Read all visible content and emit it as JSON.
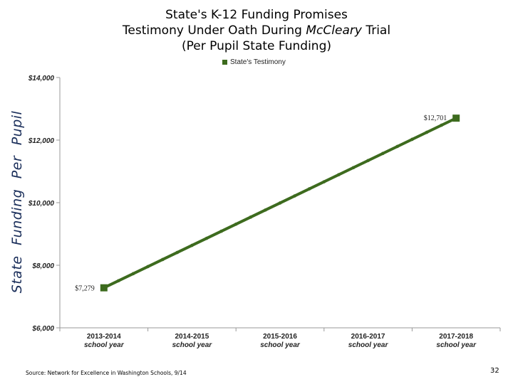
{
  "title": {
    "line1": "State's K-12 Funding Promises",
    "line2_prefix": "Testimony Under Oath During ",
    "line2_italic": "McCleary",
    "line2_suffix": " Trial",
    "line3": "(Per Pupil State Funding)"
  },
  "source": "Source: Network for Excellence in Washington Schools, 9/14",
  "page_number": "32",
  "colors": {
    "series": "#3d6b1e",
    "axis": "#999999"
  },
  "chart_data": {
    "type": "line",
    "title": "State's K-12 Funding Promises",
    "ylabel": "State Funding Per Pupil",
    "xlabel": "",
    "ylim": [
      6000,
      14000
    ],
    "y_ticks": [
      6000,
      8000,
      10000,
      12000,
      14000
    ],
    "y_tick_labels": [
      "$6,000",
      "$8,000",
      "$10,000",
      "$12,000",
      "$14,000"
    ],
    "categories": [
      [
        "2013-2014",
        "school year"
      ],
      [
        "2014-2015",
        "school year"
      ],
      [
        "2015-2016",
        "school year"
      ],
      [
        "2016-2017",
        "school year"
      ],
      [
        "2017-2018",
        "school year"
      ]
    ],
    "grid": false,
    "legend_placement": "top-center",
    "series": [
      {
        "name": "State's Testimony",
        "x": [
          0,
          4
        ],
        "values": [
          7279,
          12701
        ],
        "labels": [
          "$7,279",
          "$12,701"
        ]
      }
    ]
  }
}
